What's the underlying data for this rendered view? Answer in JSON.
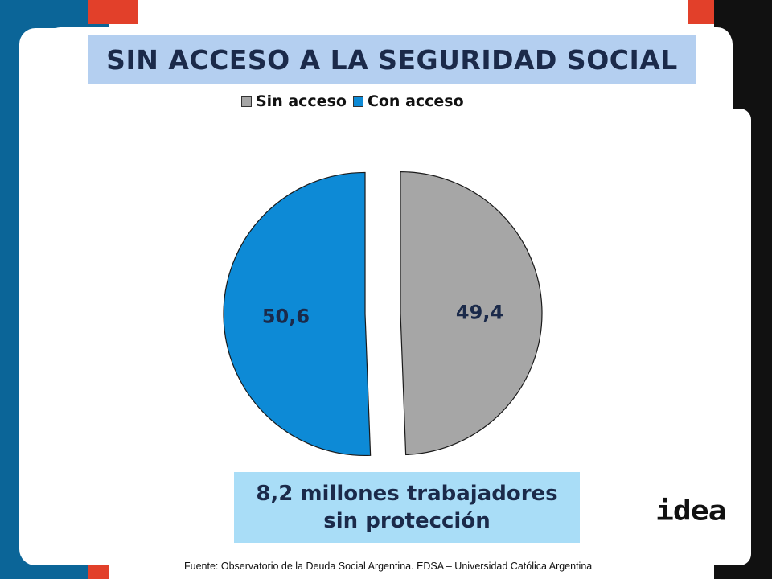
{
  "colors": {
    "frame_blue": "#0b6598",
    "frame_red": "#e2402a",
    "frame_black": "#111111",
    "title_bg": "#b4cff0",
    "callout_bg": "#a9ddf7",
    "text_navy": "#1b2a4a"
  },
  "logo": "idea",
  "source": "Fuente:  Observatorio de  la Deuda Social Argentina. EDSA  – Universidad Católica Argentina",
  "callout": {
    "line1": "8,2 millones trabajadores",
    "line2": "sin protección"
  },
  "chart_data": {
    "type": "pie",
    "title": "SIN ACCESO A LA SEGURIDAD SOCIAL",
    "legend_position": "top",
    "exploded": true,
    "slices": [
      {
        "label": "Sin acceso",
        "value": 49.4,
        "display": "49,4",
        "color": "#a6a6a6"
      },
      {
        "label": "Con acceso",
        "value": 50.6,
        "display": "50,6",
        "color": "#0d8ad6"
      }
    ]
  }
}
